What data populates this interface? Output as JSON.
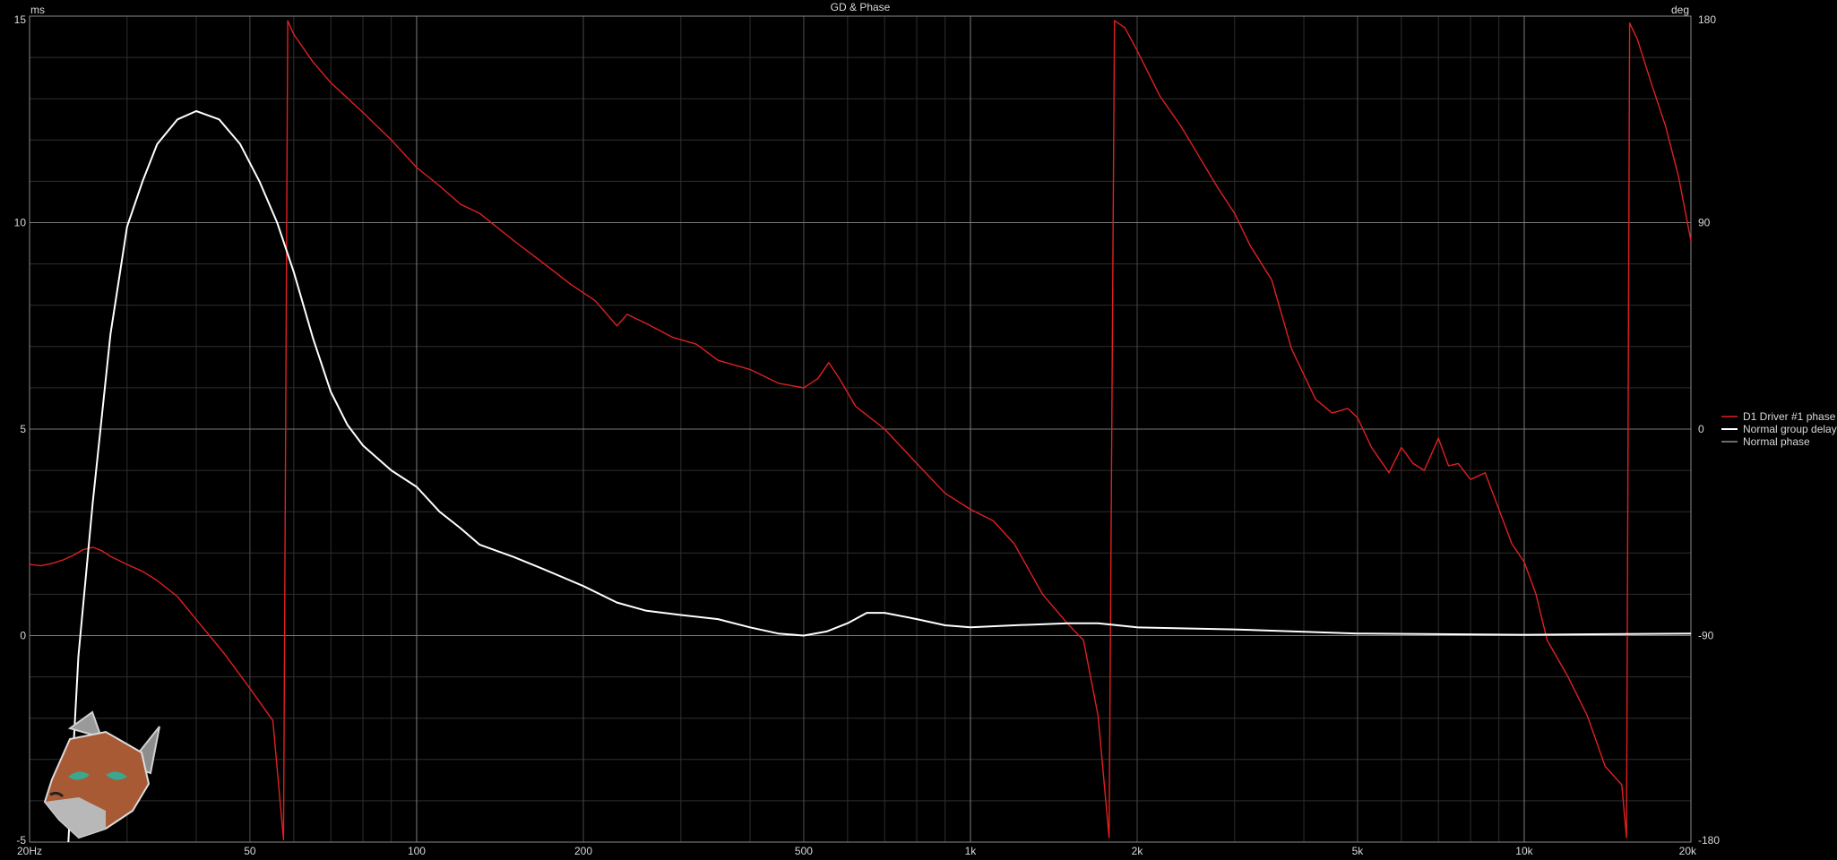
{
  "chart_data": {
    "type": "line",
    "title": "GD & Phase",
    "left_unit": "ms",
    "right_unit": "deg",
    "x_scale": "log",
    "xlim": [
      20,
      20000
    ],
    "ylim_left": [
      -5,
      15
    ],
    "ylim_right": [
      -180,
      180
    ],
    "x_ticks": [
      {
        "value": 20,
        "label": "20Hz"
      },
      {
        "value": 50,
        "label": "50"
      },
      {
        "value": 100,
        "label": "100"
      },
      {
        "value": 200,
        "label": "200"
      },
      {
        "value": 500,
        "label": "500"
      },
      {
        "value": 1000,
        "label": "1k"
      },
      {
        "value": 2000,
        "label": "2k"
      },
      {
        "value": 5000,
        "label": "5k"
      },
      {
        "value": 10000,
        "label": "10k"
      },
      {
        "value": 20000,
        "label": "20k"
      }
    ],
    "y_ticks_left": [
      {
        "value": 15,
        "label": "15"
      },
      {
        "value": 10,
        "label": "10"
      },
      {
        "value": 5,
        "label": "5"
      },
      {
        "value": 0,
        "label": "0"
      },
      {
        "value": -5,
        "label": "-5"
      }
    ],
    "y_ticks_right": [
      {
        "value": 180,
        "label": "180"
      },
      {
        "value": 90,
        "label": "90"
      },
      {
        "value": 0,
        "label": "0"
      },
      {
        "value": -90,
        "label": "-90"
      },
      {
        "value": -180,
        "label": "-180"
      }
    ],
    "grid": true,
    "legend_position": "right-middle",
    "series": [
      {
        "name": "D1 Driver #1 phase",
        "axis": "right",
        "color": "#e02020",
        "points": [
          [
            20,
            -59
          ],
          [
            21,
            -59.5
          ],
          [
            22,
            -58.5
          ],
          [
            23,
            -57
          ],
          [
            24,
            -55
          ],
          [
            25,
            -52.5
          ],
          [
            26,
            -51.5
          ],
          [
            27,
            -53
          ],
          [
            28,
            -55.5
          ],
          [
            30,
            -59
          ],
          [
            32,
            -62
          ],
          [
            34,
            -66
          ],
          [
            37,
            -73
          ],
          [
            40,
            -83
          ],
          [
            45,
            -98
          ],
          [
            50,
            -113
          ],
          [
            55,
            -127
          ],
          [
            57.5,
            -179
          ],
          [
            58.5,
            178
          ],
          [
            60,
            172
          ],
          [
            65,
            160
          ],
          [
            70,
            151
          ],
          [
            80,
            138
          ],
          [
            90,
            126
          ],
          [
            100,
            114
          ],
          [
            110,
            106
          ],
          [
            120,
            98
          ],
          [
            130,
            94
          ],
          [
            150,
            82
          ],
          [
            170,
            72
          ],
          [
            190,
            63
          ],
          [
            210,
            56
          ],
          [
            230,
            45
          ],
          [
            240,
            50
          ],
          [
            260,
            46
          ],
          [
            290,
            40
          ],
          [
            320,
            37
          ],
          [
            350,
            30
          ],
          [
            400,
            26
          ],
          [
            450,
            20
          ],
          [
            500,
            18
          ],
          [
            530,
            22
          ],
          [
            555,
            29
          ],
          [
            580,
            22
          ],
          [
            620,
            10
          ],
          [
            700,
            0
          ],
          [
            800,
            -15
          ],
          [
            900,
            -28
          ],
          [
            1000,
            -35
          ],
          [
            1100,
            -40
          ],
          [
            1200,
            -50
          ],
          [
            1350,
            -72
          ],
          [
            1500,
            -85
          ],
          [
            1600,
            -92
          ],
          [
            1700,
            -125
          ],
          [
            1780,
            -178
          ],
          [
            1820,
            178
          ],
          [
            1900,
            175
          ],
          [
            2000,
            165
          ],
          [
            2200,
            145
          ],
          [
            2400,
            132
          ],
          [
            2600,
            118
          ],
          [
            2800,
            105
          ],
          [
            3000,
            94
          ],
          [
            3200,
            80
          ],
          [
            3500,
            65
          ],
          [
            3800,
            35
          ],
          [
            4200,
            13
          ],
          [
            4500,
            7
          ],
          [
            4800,
            9
          ],
          [
            5000,
            5
          ],
          [
            5300,
            -8
          ],
          [
            5700,
            -19
          ],
          [
            6000,
            -8
          ],
          [
            6300,
            -15
          ],
          [
            6600,
            -18
          ],
          [
            7000,
            -4
          ],
          [
            7300,
            -16
          ],
          [
            7600,
            -15
          ],
          [
            8000,
            -22
          ],
          [
            8500,
            -19
          ],
          [
            9000,
            -35
          ],
          [
            9500,
            -50
          ],
          [
            10000,
            -58
          ],
          [
            10500,
            -72
          ],
          [
            11000,
            -92
          ],
          [
            12000,
            -108
          ],
          [
            13000,
            -125
          ],
          [
            14000,
            -147
          ],
          [
            15000,
            -155
          ],
          [
            15300,
            -178
          ],
          [
            15500,
            177
          ],
          [
            16000,
            170
          ],
          [
            17000,
            150
          ],
          [
            18000,
            132
          ],
          [
            19000,
            110
          ],
          [
            20000,
            82
          ]
        ]
      },
      {
        "name": "Normal group delay",
        "axis": "left",
        "color": "#ffffff",
        "points": [
          [
            23.5,
            -5
          ],
          [
            24.5,
            -0.5
          ],
          [
            26,
            3.2
          ],
          [
            28,
            7.3
          ],
          [
            30,
            9.9
          ],
          [
            32,
            11
          ],
          [
            34,
            11.9
          ],
          [
            37,
            12.5
          ],
          [
            40,
            12.7
          ],
          [
            44,
            12.5
          ],
          [
            48,
            11.9
          ],
          [
            52,
            11
          ],
          [
            56,
            10
          ],
          [
            60,
            8.8
          ],
          [
            65,
            7.2
          ],
          [
            70,
            5.9
          ],
          [
            75,
            5.1
          ],
          [
            80,
            4.6
          ],
          [
            90,
            4
          ],
          [
            100,
            3.6
          ],
          [
            110,
            3
          ],
          [
            120,
            2.6
          ],
          [
            130,
            2.2
          ],
          [
            150,
            1.9
          ],
          [
            170,
            1.6
          ],
          [
            200,
            1.2
          ],
          [
            230,
            0.8
          ],
          [
            260,
            0.6
          ],
          [
            300,
            0.5
          ],
          [
            350,
            0.4
          ],
          [
            400,
            0.2
          ],
          [
            450,
            0.05
          ],
          [
            500,
            0
          ],
          [
            550,
            0.1
          ],
          [
            600,
            0.3
          ],
          [
            650,
            0.55
          ],
          [
            700,
            0.55
          ],
          [
            800,
            0.4
          ],
          [
            900,
            0.25
          ],
          [
            1000,
            0.2
          ],
          [
            1200,
            0.25
          ],
          [
            1500,
            0.3
          ],
          [
            1700,
            0.3
          ],
          [
            2000,
            0.2
          ],
          [
            3000,
            0.15
          ],
          [
            5000,
            0.05
          ],
          [
            10000,
            0.02
          ],
          [
            20000,
            0.05
          ]
        ]
      },
      {
        "name": "Normal phase",
        "axis": "right",
        "color": "#909090",
        "points": []
      }
    ]
  }
}
